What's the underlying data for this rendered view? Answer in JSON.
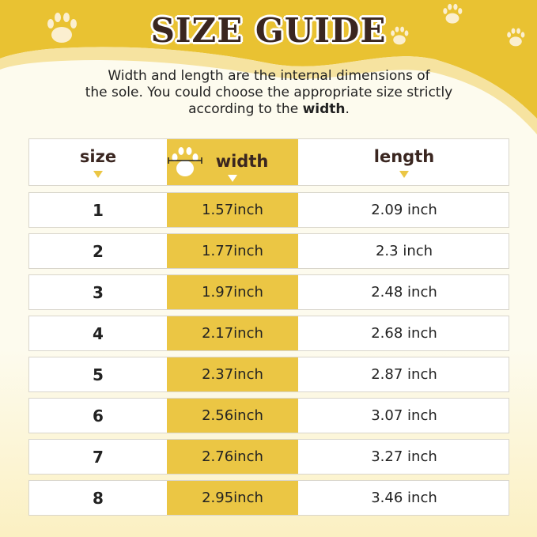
{
  "title": "SIZE GUIDE",
  "description": {
    "line1": "Width and length are the internal dimensions of",
    "line2": "the sole. You could choose the appropriate size strictly",
    "line3_prefix": "according to the ",
    "line3_bold": "width",
    "line3_suffix": "."
  },
  "colors": {
    "accent": "#ebc644",
    "header_bg": "#e9c232",
    "text": "#3a2620"
  },
  "table": {
    "headers": [
      "size",
      "width",
      "length"
    ],
    "rows": [
      [
        "1",
        "1.57inch",
        "2.09 inch"
      ],
      [
        "2",
        "1.77inch",
        "2.3 inch"
      ],
      [
        "3",
        "1.97inch",
        "2.48 inch"
      ],
      [
        "4",
        "2.17inch",
        "2.68 inch"
      ],
      [
        "5",
        "2.37inch",
        "2.87 inch"
      ],
      [
        "6",
        "2.56inch",
        "3.07 inch"
      ],
      [
        "7",
        "2.76inch",
        "3.27 inch"
      ],
      [
        "8",
        "2.95inch",
        "3.46 inch"
      ]
    ]
  }
}
